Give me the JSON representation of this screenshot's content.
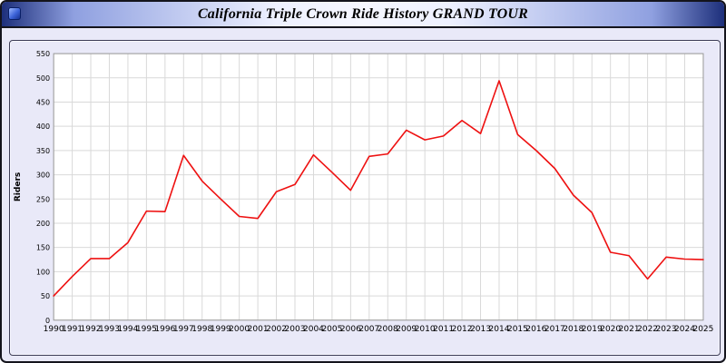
{
  "window": {
    "title": "California Triple Crown Ride History GRAND TOUR",
    "icon": "app-icon"
  },
  "chart_data": {
    "type": "line",
    "title": "California Triple Crown Ride History GRAND TOUR",
    "xlabel": "",
    "ylabel": "Riders",
    "ylim": [
      0,
      550
    ],
    "ytick_step": 50,
    "grid": true,
    "legend": "none",
    "line_color": "#ee1111",
    "plot_bg": "#ffffff",
    "grid_color": "#d9d9d9",
    "frame_color": "#9a9a9a",
    "x": [
      1990,
      1991,
      1992,
      1993,
      1994,
      1995,
      1996,
      1997,
      1998,
      1999,
      2000,
      2001,
      2002,
      2003,
      2004,
      2005,
      2006,
      2007,
      2008,
      2009,
      2010,
      2011,
      2012,
      2013,
      2014,
      2015,
      2016,
      2017,
      2018,
      2019,
      2020,
      2021,
      2022,
      2023,
      2024,
      2025
    ],
    "series": [
      {
        "name": "Riders",
        "values": [
          50,
          90,
          127,
          127,
          160,
          225,
          224,
          340,
          287,
          250,
          214,
          210,
          265,
          280,
          341,
          305,
          268,
          338,
          343,
          392,
          372,
          380,
          412,
          385,
          494,
          383,
          350,
          313,
          258,
          222,
          140,
          133,
          85,
          130,
          126,
          125
        ]
      }
    ]
  }
}
